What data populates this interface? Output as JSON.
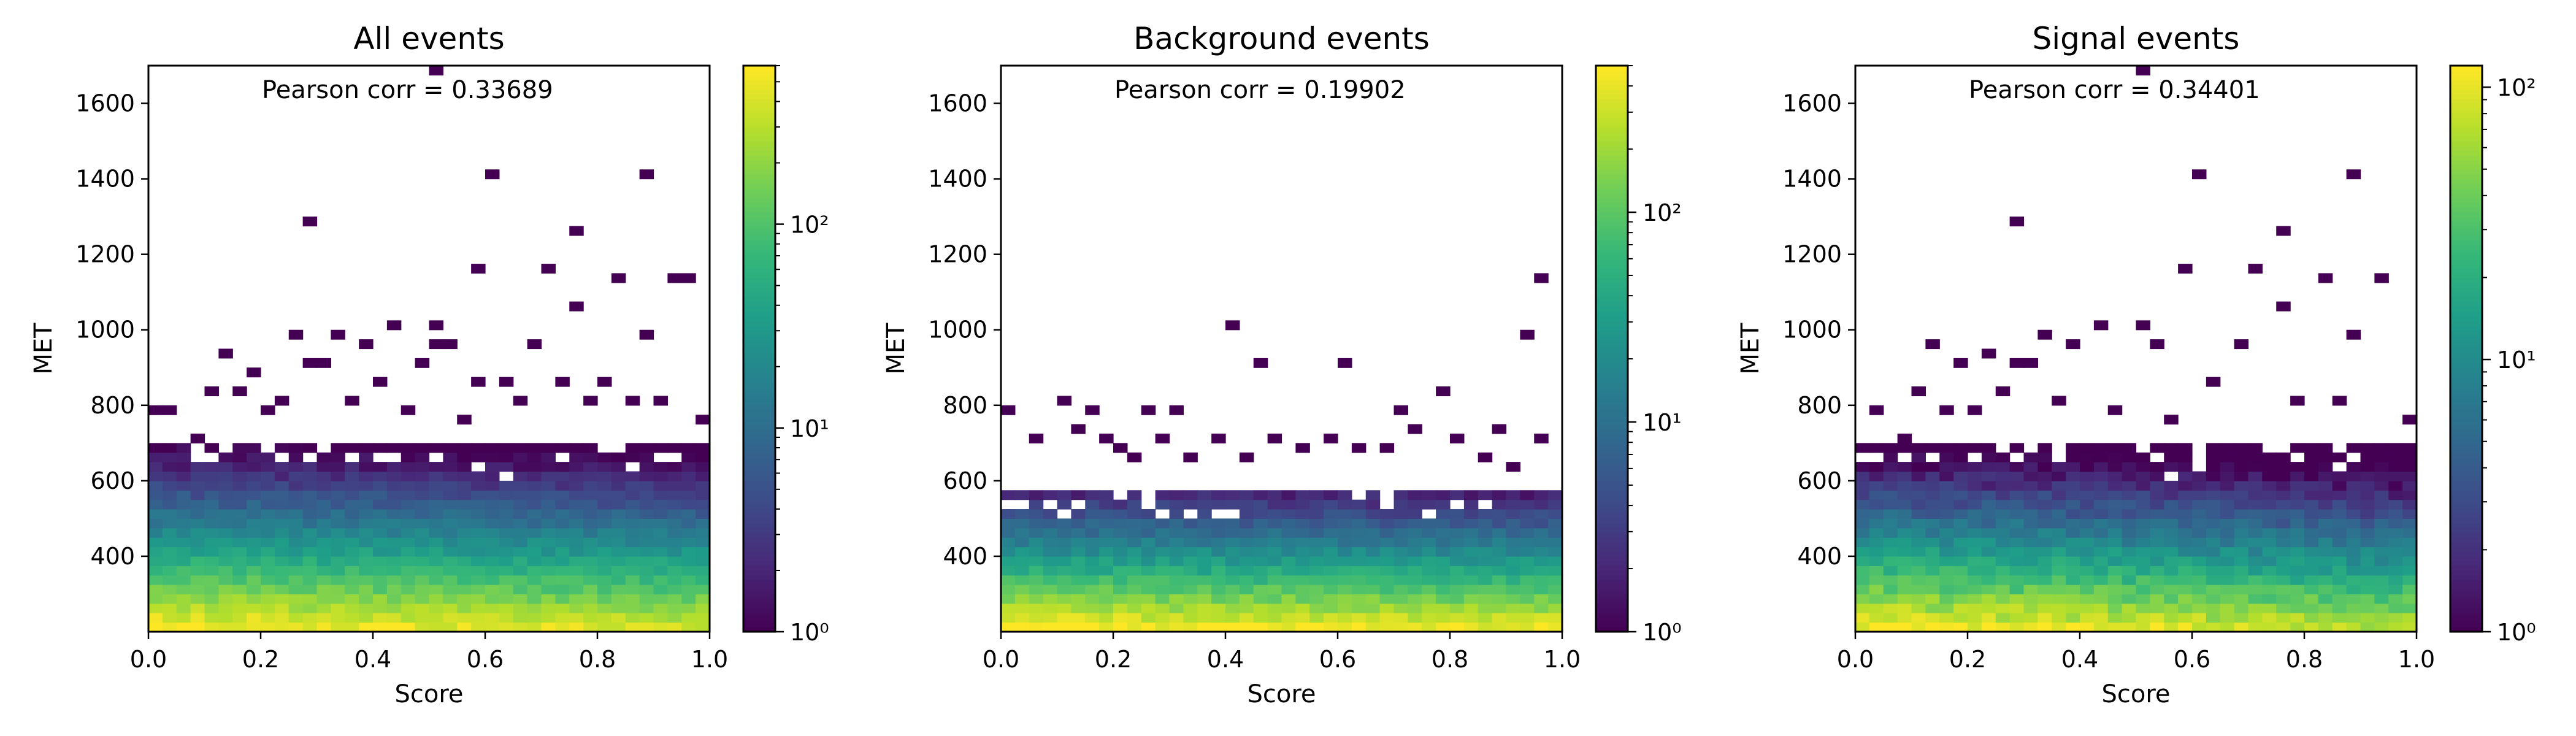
{
  "chart_data": [
    {
      "type": "heatmap",
      "title": "All events",
      "xlabel": "Score",
      "ylabel": "MET",
      "xlim": [
        0.0,
        1.0
      ],
      "ylim": [
        200,
        1700
      ],
      "x_ticks": [
        "0.0",
        "0.2",
        "0.4",
        "0.6",
        "0.8",
        "1.0"
      ],
      "y_ticks": [
        "400",
        "600",
        "800",
        "1000",
        "1200",
        "1400",
        "1600"
      ],
      "annotation": "Pearson corr = 0.33689",
      "colorbar": {
        "scale": "log",
        "min": 1,
        "max": 600,
        "ticks": [
          "10⁰",
          "10¹",
          "10²"
        ]
      },
      "colormap": "viridis",
      "bins": {
        "nx": 40,
        "dx": 0.025,
        "y0": 200,
        "dy": 25,
        "dense_top": 700,
        "peak": 600,
        "scale_height": 75,
        "x_slope": 0.35
      },
      "sparse_cells": [
        [
          0.0,
          775
        ],
        [
          0.025,
          775
        ],
        [
          0.075,
          700
        ],
        [
          0.1,
          825
        ],
        [
          0.125,
          925
        ],
        [
          0.15,
          825
        ],
        [
          0.175,
          875
        ],
        [
          0.2,
          775
        ],
        [
          0.225,
          800
        ],
        [
          0.25,
          975
        ],
        [
          0.275,
          900
        ],
        [
          0.3,
          900
        ],
        [
          0.325,
          975
        ],
        [
          0.35,
          800
        ],
        [
          0.375,
          950
        ],
        [
          0.4,
          850
        ],
        [
          0.425,
          1000
        ],
        [
          0.45,
          775
        ],
        [
          0.475,
          900
        ],
        [
          0.5,
          1000
        ],
        [
          0.5,
          950
        ],
        [
          0.525,
          950
        ],
        [
          0.55,
          750
        ],
        [
          0.575,
          1150
        ],
        [
          0.575,
          850
        ],
        [
          0.6,
          1400
        ],
        [
          0.625,
          850
        ],
        [
          0.65,
          800
        ],
        [
          0.675,
          950
        ],
        [
          0.7,
          1150
        ],
        [
          0.725,
          850
        ],
        [
          0.75,
          1250
        ],
        [
          0.75,
          1050
        ],
        [
          0.775,
          800
        ],
        [
          0.8,
          850
        ],
        [
          0.825,
          1125
        ],
        [
          0.85,
          800
        ],
        [
          0.875,
          975
        ],
        [
          0.875,
          1400
        ],
        [
          0.9,
          800
        ],
        [
          0.925,
          1125
        ],
        [
          0.95,
          1125
        ],
        [
          0.975,
          750
        ],
        [
          0.5,
          1675
        ],
        [
          0.275,
          1275
        ]
      ],
      "holes": [
        [
          0.625,
          600
        ],
        [
          0.85,
          620
        ],
        [
          0.3,
          675
        ],
        [
          0.575,
          620
        ]
      ]
    },
    {
      "type": "heatmap",
      "title": "Background events",
      "xlabel": "Score",
      "ylabel": "MET",
      "xlim": [
        0.0,
        1.0
      ],
      "ylim": [
        200,
        1700
      ],
      "x_ticks": [
        "0.0",
        "0.2",
        "0.4",
        "0.6",
        "0.8",
        "1.0"
      ],
      "y_ticks": [
        "400",
        "600",
        "800",
        "1000",
        "1200",
        "1400",
        "1600"
      ],
      "annotation": "Pearson corr = 0.19902",
      "colorbar": {
        "scale": "log",
        "min": 1,
        "max": 500,
        "ticks": [
          "10⁰",
          "10¹",
          "10²"
        ]
      },
      "colormap": "viridis",
      "bins": {
        "nx": 40,
        "dx": 0.025,
        "y0": 200,
        "dy": 25,
        "dense_top": 560,
        "peak": 500,
        "scale_height": 65,
        "x_slope": 0.2
      },
      "sparse_cells": [
        [
          0.0,
          775
        ],
        [
          0.05,
          700
        ],
        [
          0.1,
          800
        ],
        [
          0.125,
          725
        ],
        [
          0.15,
          775
        ],
        [
          0.175,
          700
        ],
        [
          0.2,
          675
        ],
        [
          0.225,
          650
        ],
        [
          0.25,
          775
        ],
        [
          0.275,
          700
        ],
        [
          0.3,
          775
        ],
        [
          0.325,
          650
        ],
        [
          0.375,
          700
        ],
        [
          0.4,
          1000
        ],
        [
          0.425,
          650
        ],
        [
          0.45,
          900
        ],
        [
          0.475,
          700
        ],
        [
          0.525,
          675
        ],
        [
          0.575,
          700
        ],
        [
          0.6,
          900
        ],
        [
          0.625,
          675
        ],
        [
          0.675,
          675
        ],
        [
          0.7,
          775
        ],
        [
          0.725,
          725
        ],
        [
          0.775,
          825
        ],
        [
          0.8,
          700
        ],
        [
          0.85,
          650
        ],
        [
          0.875,
          725
        ],
        [
          0.9,
          625
        ],
        [
          0.925,
          975
        ],
        [
          0.95,
          1125
        ],
        [
          0.95,
          700
        ]
      ],
      "holes": [
        [
          0.2,
          550
        ],
        [
          0.575,
          580
        ],
        [
          0.925,
          575
        ]
      ]
    },
    {
      "type": "heatmap",
      "title": "Signal events",
      "xlabel": "Score",
      "ylabel": "MET",
      "xlim": [
        0.0,
        1.0
      ],
      "ylim": [
        200,
        1700
      ],
      "x_ticks": [
        "0.0",
        "0.2",
        "0.4",
        "0.6",
        "0.8",
        "1.0"
      ],
      "y_ticks": [
        "400",
        "600",
        "800",
        "1000",
        "1200",
        "1400",
        "1600"
      ],
      "annotation": "Pearson corr = 0.34401",
      "colorbar": {
        "scale": "log",
        "min": 1,
        "max": 120,
        "ticks": [
          "10⁰",
          "10¹",
          "10²"
        ]
      },
      "colormap": "viridis",
      "bins": {
        "nx": 40,
        "dx": 0.025,
        "y0": 200,
        "dy": 25,
        "dense_top": 700,
        "peak": 120,
        "scale_height": 95,
        "x_slope": 0.4
      },
      "sparse_cells": [
        [
          0.025,
          775
        ],
        [
          0.075,
          700
        ],
        [
          0.1,
          825
        ],
        [
          0.125,
          950
        ],
        [
          0.15,
          775
        ],
        [
          0.175,
          900
        ],
        [
          0.2,
          775
        ],
        [
          0.225,
          925
        ],
        [
          0.25,
          825
        ],
        [
          0.275,
          900
        ],
        [
          0.3,
          900
        ],
        [
          0.325,
          975
        ],
        [
          0.35,
          800
        ],
        [
          0.375,
          950
        ],
        [
          0.425,
          1000
        ],
        [
          0.45,
          775
        ],
        [
          0.5,
          1000
        ],
        [
          0.525,
          950
        ],
        [
          0.55,
          750
        ],
        [
          0.575,
          1150
        ],
        [
          0.6,
          1400
        ],
        [
          0.625,
          850
        ],
        [
          0.675,
          950
        ],
        [
          0.7,
          1150
        ],
        [
          0.75,
          1250
        ],
        [
          0.75,
          1050
        ],
        [
          0.775,
          800
        ],
        [
          0.825,
          1125
        ],
        [
          0.85,
          800
        ],
        [
          0.875,
          975
        ],
        [
          0.875,
          1400
        ],
        [
          0.925,
          1125
        ],
        [
          0.975,
          750
        ],
        [
          0.5,
          1675
        ],
        [
          0.275,
          1275
        ]
      ],
      "holes": [
        [
          0.6,
          620
        ],
        [
          0.85,
          620
        ],
        [
          0.3,
          675
        ],
        [
          0.55,
          600
        ]
      ]
    }
  ]
}
